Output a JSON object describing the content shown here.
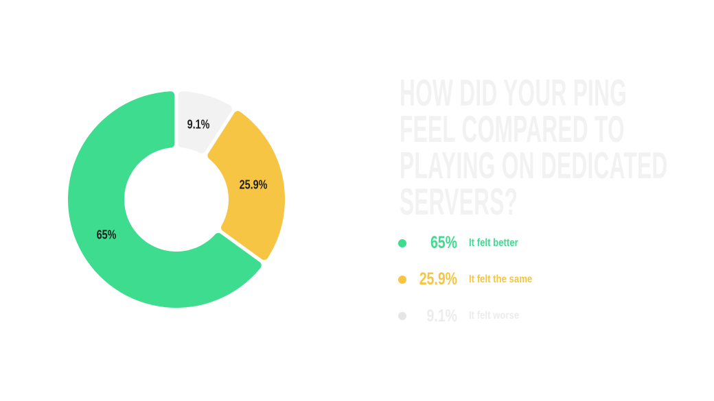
{
  "palette": {
    "background": "#FFFFFF",
    "title": "#F2F2F2",
    "slice_label": "#1F1F1F",
    "slice_gap": "#FFFFFF"
  },
  "title": {
    "text": "HOW DID YOUR PING FEEL COMPARED TO PLAYING ON DEDICATED SERVERS?",
    "lines": [
      "HOW DID YOUR PING",
      "FEEL COMPARED TO",
      "PLAYING ON DEDICATED",
      "SERVERS?"
    ]
  },
  "chart_data": {
    "type": "pie",
    "subtype": "donut",
    "unit": "%",
    "title": "HOW DID YOUR PING FEEL COMPARED TO PLAYING ON DEDICATED SERVERS?",
    "legend_position": "right",
    "start_angle_deg": 0,
    "direction": "clockwise",
    "draw_order_from_top": [
      "It felt worse",
      "It felt the same",
      "It felt better"
    ],
    "series": [
      {
        "name": "It felt better",
        "value": 65.0,
        "display_value": "65%",
        "color": "#3EDC8E",
        "legend_dot_color": "#3EDC8E",
        "legend_text_color": "#3EDC8E"
      },
      {
        "name": "It felt the same",
        "value": 25.9,
        "display_value": "25.9%",
        "color": "#F6C544",
        "legend_dot_color": "#F6C544",
        "legend_text_color": "#F6C544"
      },
      {
        "name": "It felt worse",
        "value": 9.1,
        "display_value": "9.1%",
        "color": "#F2F2F2",
        "legend_dot_color": "#E5E5E5",
        "legend_text_color": "#ECECEC"
      }
    ]
  }
}
